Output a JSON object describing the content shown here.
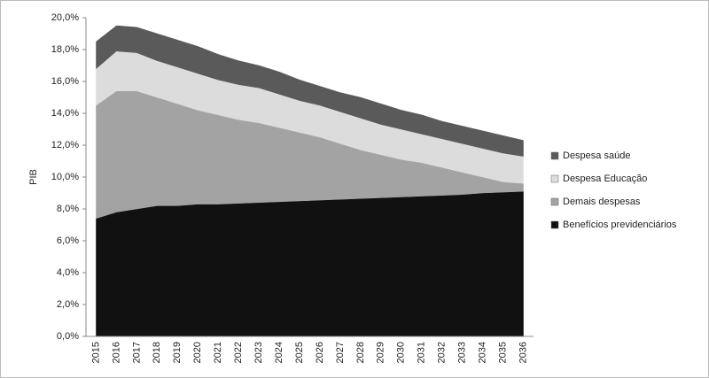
{
  "chart_data": {
    "type": "stacked_area",
    "y_label": "PIB",
    "categories": [
      "2015",
      "2016",
      "2017",
      "2018",
      "2019",
      "2020",
      "2021",
      "2022",
      "2023",
      "2024",
      "2025",
      "2026",
      "2027",
      "2028",
      "2029",
      "2030",
      "2031",
      "2032",
      "2033",
      "2034",
      "2035",
      "2036"
    ],
    "series": [
      {
        "name": "Benefícios previdenciários",
        "color": "#111111",
        "values": [
          7.4,
          7.8,
          8.0,
          8.2,
          8.2,
          8.3,
          8.3,
          8.35,
          8.4,
          8.45,
          8.5,
          8.55,
          8.6,
          8.65,
          8.7,
          8.75,
          8.8,
          8.85,
          8.9,
          9.0,
          9.05,
          9.1
        ]
      },
      {
        "name": "Demais despesas",
        "color": "#a3a3a3",
        "values": [
          7.1,
          7.6,
          7.4,
          6.8,
          6.4,
          5.9,
          5.6,
          5.25,
          5.0,
          4.65,
          4.3,
          3.95,
          3.5,
          3.05,
          2.7,
          2.35,
          2.1,
          1.75,
          1.4,
          1.0,
          0.65,
          0.5
        ]
      },
      {
        "name": "Despesa Educação",
        "color": "#dcdcdc",
        "values": [
          2.3,
          2.5,
          2.4,
          2.3,
          2.3,
          2.3,
          2.2,
          2.2,
          2.2,
          2.1,
          2.0,
          2.0,
          2.0,
          2.0,
          1.9,
          1.9,
          1.8,
          1.8,
          1.8,
          1.8,
          1.8,
          1.7
        ]
      },
      {
        "name": "Despesa saúde",
        "color": "#5a5a5a",
        "values": [
          1.7,
          1.6,
          1.6,
          1.7,
          1.7,
          1.7,
          1.6,
          1.5,
          1.4,
          1.4,
          1.3,
          1.2,
          1.2,
          1.3,
          1.3,
          1.2,
          1.2,
          1.1,
          1.1,
          1.1,
          1.1,
          1.0
        ]
      }
    ],
    "ylim": [
      0,
      20
    ],
    "yticks": [
      {
        "value": 0,
        "label": "0,0%"
      },
      {
        "value": 2,
        "label": "2,0%"
      },
      {
        "value": 4,
        "label": "4,0%"
      },
      {
        "value": 6,
        "label": "6,0%"
      },
      {
        "value": 8,
        "label": "8,0%"
      },
      {
        "value": 10,
        "label": "10,0%"
      },
      {
        "value": 12,
        "label": "12,0%"
      },
      {
        "value": 14,
        "label": "14,0%"
      },
      {
        "value": 16,
        "label": "16,0%"
      },
      {
        "value": 18,
        "label": "18,0%"
      },
      {
        "value": 20,
        "label": "20,0%"
      }
    ],
    "legend": "right"
  }
}
